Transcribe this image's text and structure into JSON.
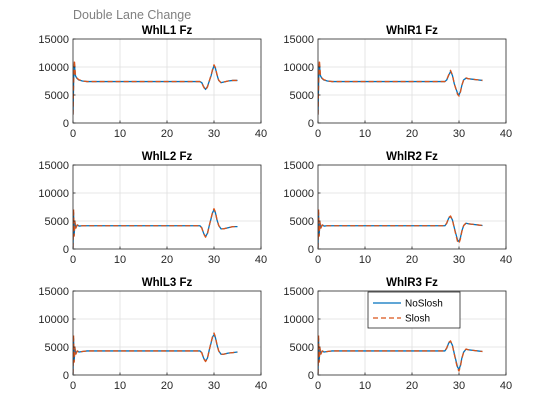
{
  "figure_title": "Double Lane Change",
  "chart_data": [
    {
      "type": "line",
      "title": "WhlL1 Fz",
      "xlim": [
        0,
        40
      ],
      "ylim": [
        0,
        15000
      ],
      "xticks": [
        0,
        10,
        20,
        30,
        40
      ],
      "yticks": [
        0,
        5000,
        10000,
        15000
      ],
      "grid": true,
      "series": [
        {
          "name": "NoSlosh",
          "x": [
            0,
            0.15,
            0.3,
            0.5,
            0.8,
            1.2,
            2,
            3,
            5,
            10,
            15,
            20,
            25,
            27,
            27.4,
            27.8,
            28.2,
            28.6,
            29,
            29.4,
            29.7,
            30,
            30.3,
            30.6,
            31,
            31.5,
            32,
            33,
            34,
            35
          ],
          "y": [
            1500,
            8000,
            10500,
            8500,
            8000,
            7700,
            7500,
            7400,
            7400,
            7400,
            7400,
            7400,
            7400,
            7400,
            7200,
            6500,
            6000,
            6500,
            7500,
            8500,
            9500,
            10200,
            9800,
            8700,
            7600,
            7200,
            7300,
            7500,
            7600,
            7600
          ]
        },
        {
          "name": "Slosh",
          "x": [
            0,
            0.15,
            0.3,
            0.5,
            0.8,
            1.2,
            2,
            3,
            5,
            10,
            15,
            20,
            25,
            27,
            27.4,
            27.8,
            28.2,
            28.6,
            29,
            29.4,
            29.7,
            30,
            30.3,
            30.6,
            31,
            31.5,
            32,
            33,
            34,
            35
          ],
          "y": [
            1500,
            8000,
            11200,
            8700,
            8100,
            7750,
            7500,
            7400,
            7400,
            7400,
            7400,
            7400,
            7400,
            7400,
            7150,
            6400,
            5900,
            6400,
            7500,
            8600,
            9600,
            10400,
            9900,
            8800,
            7650,
            7200,
            7300,
            7500,
            7600,
            7600
          ]
        }
      ]
    },
    {
      "type": "line",
      "title": "WhlR1 Fz",
      "xlim": [
        0,
        40
      ],
      "ylim": [
        0,
        15000
      ],
      "xticks": [
        0,
        10,
        20,
        30,
        40
      ],
      "yticks": [
        0,
        5000,
        10000,
        15000
      ],
      "grid": true,
      "series": [
        {
          "name": "NoSlosh",
          "x": [
            0,
            0.15,
            0.3,
            0.5,
            0.8,
            1.2,
            2,
            3,
            5,
            10,
            15,
            20,
            25,
            27,
            27.4,
            27.8,
            28.2,
            28.6,
            29,
            29.4,
            29.7,
            30,
            30.3,
            30.6,
            31,
            31.5,
            32,
            33,
            34,
            35
          ],
          "y": [
            1500,
            8000,
            10500,
            8500,
            8000,
            7700,
            7500,
            7400,
            7400,
            7400,
            7400,
            7400,
            7400,
            7400,
            7700,
            8500,
            9200,
            8500,
            7000,
            6000,
            5300,
            5000,
            5600,
            6700,
            7700,
            8000,
            7900,
            7800,
            7700,
            7600
          ]
        },
        {
          "name": "Slosh",
          "x": [
            0,
            0.15,
            0.3,
            0.5,
            0.8,
            1.2,
            2,
            3,
            5,
            10,
            15,
            20,
            25,
            27,
            27.4,
            27.8,
            28.2,
            28.6,
            29,
            29.4,
            29.7,
            30,
            30.3,
            30.6,
            31,
            31.5,
            32,
            33,
            34,
            35
          ],
          "y": [
            1500,
            8000,
            11200,
            8700,
            8100,
            7750,
            7500,
            7400,
            7400,
            7400,
            7400,
            7400,
            7400,
            7400,
            7750,
            8600,
            9400,
            8600,
            7000,
            5900,
            5100,
            4800,
            5500,
            6700,
            7750,
            8050,
            7900,
            7800,
            7700,
            7600
          ]
        }
      ]
    },
    {
      "type": "line",
      "title": "WhlL2 Fz",
      "xlim": [
        0,
        40
      ],
      "ylim": [
        0,
        15000
      ],
      "xticks": [
        0,
        10,
        20,
        30,
        40
      ],
      "yticks": [
        0,
        5000,
        10000,
        15000
      ],
      "grid": true,
      "series": [
        {
          "name": "NoSlosh",
          "x": [
            0,
            0.12,
            0.25,
            0.4,
            0.6,
            0.9,
            1.3,
            2,
            3,
            5,
            10,
            15,
            20,
            25,
            27,
            27.4,
            27.8,
            28.2,
            28.6,
            29,
            29.4,
            29.7,
            30,
            30.3,
            30.6,
            31,
            31.5,
            32,
            33,
            34,
            35
          ],
          "y": [
            200,
            6500,
            2500,
            4800,
            3800,
            4300,
            4100,
            4150,
            4150,
            4150,
            4150,
            4150,
            4150,
            4150,
            4150,
            3800,
            2800,
            2200,
            2800,
            4200,
            5500,
            6500,
            7000,
            6500,
            5300,
            4200,
            3600,
            3600,
            3800,
            4000,
            4000
          ]
        },
        {
          "name": "Slosh",
          "x": [
            0,
            0.12,
            0.25,
            0.4,
            0.6,
            0.9,
            1.3,
            2,
            3,
            5,
            10,
            15,
            20,
            25,
            27,
            27.4,
            27.8,
            28.2,
            28.6,
            29,
            29.4,
            29.7,
            30,
            30.3,
            30.6,
            31,
            31.5,
            32,
            33,
            34,
            35
          ],
          "y": [
            200,
            7200,
            2300,
            4900,
            3700,
            4300,
            4100,
            4150,
            4150,
            4150,
            4150,
            4150,
            4150,
            4150,
            4150,
            3750,
            2700,
            2100,
            2700,
            4200,
            5600,
            6600,
            7200,
            6600,
            5400,
            4200,
            3600,
            3600,
            3800,
            4000,
            4000
          ]
        }
      ]
    },
    {
      "type": "line",
      "title": "WhlR2 Fz",
      "xlim": [
        0,
        40
      ],
      "ylim": [
        0,
        15000
      ],
      "xticks": [
        0,
        10,
        20,
        30,
        40
      ],
      "yticks": [
        0,
        5000,
        10000,
        15000
      ],
      "grid": true,
      "series": [
        {
          "name": "NoSlosh",
          "x": [
            0,
            0.12,
            0.25,
            0.4,
            0.6,
            0.9,
            1.3,
            2,
            3,
            5,
            10,
            15,
            20,
            25,
            27,
            27.4,
            27.8,
            28.2,
            28.6,
            29,
            29.4,
            29.7,
            30,
            30.3,
            30.6,
            31,
            31.5,
            32,
            33,
            34,
            35
          ],
          "y": [
            200,
            6500,
            2500,
            4800,
            3800,
            4300,
            4100,
            4150,
            4150,
            4150,
            4150,
            4150,
            4150,
            4150,
            4150,
            4600,
            5500,
            5800,
            5200,
            3800,
            2500,
            1600,
            1300,
            2000,
            3200,
            4200,
            4600,
            4500,
            4400,
            4300,
            4200
          ]
        },
        {
          "name": "Slosh",
          "x": [
            0,
            0.12,
            0.25,
            0.4,
            0.6,
            0.9,
            1.3,
            2,
            3,
            5,
            10,
            15,
            20,
            25,
            27,
            27.4,
            27.8,
            28.2,
            28.6,
            29,
            29.4,
            29.7,
            30,
            30.3,
            30.6,
            31,
            31.5,
            32,
            33,
            34,
            35
          ],
          "y": [
            200,
            7200,
            2300,
            4900,
            3700,
            4300,
            4100,
            4150,
            4150,
            4150,
            4150,
            4150,
            4150,
            4150,
            4150,
            4650,
            5600,
            5900,
            5200,
            3700,
            2300,
            1300,
            1000,
            1800,
            3100,
            4200,
            4650,
            4500,
            4400,
            4300,
            4200
          ]
        }
      ]
    },
    {
      "type": "line",
      "title": "WhlL3 Fz",
      "xlim": [
        0,
        40
      ],
      "ylim": [
        0,
        15000
      ],
      "xticks": [
        0,
        10,
        20,
        30,
        40
      ],
      "yticks": [
        0,
        5000,
        10000,
        15000
      ],
      "grid": true,
      "series": [
        {
          "name": "NoSlosh",
          "x": [
            0,
            0.12,
            0.25,
            0.4,
            0.6,
            0.9,
            1.3,
            2,
            3,
            5,
            10,
            15,
            20,
            25,
            27,
            27.4,
            27.8,
            28.2,
            28.6,
            29,
            29.4,
            29.7,
            30,
            30.3,
            30.6,
            31,
            31.5,
            32,
            33,
            34,
            35
          ],
          "y": [
            200,
            6500,
            2500,
            4800,
            3800,
            4300,
            4100,
            4200,
            4300,
            4300,
            4300,
            4300,
            4300,
            4300,
            4300,
            4000,
            3000,
            2500,
            3000,
            4500,
            5800,
            6800,
            7200,
            6700,
            5500,
            4300,
            3700,
            3700,
            3900,
            4000,
            4100
          ]
        },
        {
          "name": "Slosh",
          "x": [
            0,
            0.12,
            0.25,
            0.4,
            0.6,
            0.9,
            1.3,
            2,
            3,
            5,
            10,
            15,
            20,
            25,
            27,
            27.4,
            27.8,
            28.2,
            28.6,
            29,
            29.4,
            29.7,
            30,
            30.3,
            30.6,
            31,
            31.5,
            32,
            33,
            34,
            35
          ],
          "y": [
            200,
            7200,
            2300,
            4900,
            3700,
            4300,
            4100,
            4200,
            4300,
            4300,
            4300,
            4300,
            4300,
            4300,
            4300,
            3950,
            2900,
            2400,
            2900,
            4500,
            5900,
            6900,
            7500,
            6800,
            5600,
            4300,
            3700,
            3700,
            3900,
            4000,
            4100
          ]
        }
      ]
    },
    {
      "type": "line",
      "title": "WhlR3 Fz",
      "xlim": [
        0,
        40
      ],
      "ylim": [
        0,
        15000
      ],
      "xticks": [
        0,
        10,
        20,
        30,
        40
      ],
      "yticks": [
        0,
        5000,
        10000,
        15000
      ],
      "grid": true,
      "legend": "top-right",
      "series": [
        {
          "name": "NoSlosh",
          "x": [
            0,
            0.12,
            0.25,
            0.4,
            0.6,
            0.9,
            1.3,
            2,
            3,
            5,
            10,
            15,
            20,
            25,
            27,
            27.4,
            27.8,
            28.2,
            28.6,
            29,
            29.4,
            29.7,
            30,
            30.3,
            30.6,
            31,
            31.5,
            32,
            33,
            34,
            35
          ],
          "y": [
            200,
            6500,
            2500,
            4800,
            3800,
            4300,
            4100,
            4200,
            4300,
            4300,
            4300,
            4300,
            4300,
            4300,
            4300,
            4800,
            5700,
            6000,
            5300,
            3800,
            2400,
            1400,
            1000,
            1700,
            3000,
            4100,
            4600,
            4500,
            4400,
            4300,
            4200
          ]
        },
        {
          "name": "Slosh",
          "x": [
            0,
            0.12,
            0.25,
            0.4,
            0.6,
            0.9,
            1.3,
            2,
            3,
            5,
            10,
            15,
            20,
            25,
            27,
            27.4,
            27.8,
            28.2,
            28.6,
            29,
            29.4,
            29.7,
            30,
            30.3,
            30.6,
            31,
            31.5,
            32,
            33,
            34,
            35
          ],
          "y": [
            200,
            7200,
            2300,
            4900,
            3700,
            4300,
            4100,
            4200,
            4300,
            4300,
            4300,
            4300,
            4300,
            4300,
            4300,
            4850,
            5800,
            6100,
            5300,
            3700,
            2200,
            1100,
            700,
            1500,
            2900,
            4100,
            4650,
            4500,
            4400,
            4300,
            4200
          ]
        }
      ]
    }
  ],
  "legend": {
    "items": [
      {
        "label": "NoSlosh",
        "color": "#0072BD",
        "style": "solid"
      },
      {
        "label": "Slosh",
        "color": "#D95319",
        "style": "dashed"
      }
    ]
  },
  "colors": {
    "noslosh": "#0072BD",
    "slosh": "#D95319",
    "grid": "#DFDFDF",
    "axis": "#262626",
    "figure_title": "#808080"
  }
}
